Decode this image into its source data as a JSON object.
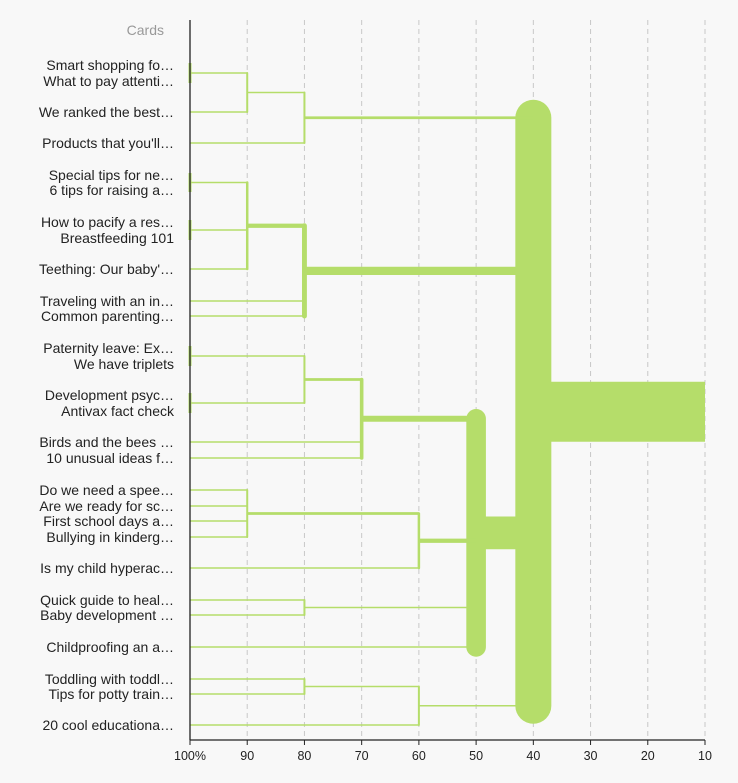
{
  "chart_data": {
    "type": "dendrogram",
    "header": "Cards",
    "accent_color": "#b5dd6a",
    "axis": {
      "ticks": [
        100,
        90,
        80,
        70,
        60,
        50,
        40,
        30,
        20,
        10
      ],
      "tick_labels": [
        "100%",
        "90",
        "80",
        "70",
        "60",
        "50",
        "40",
        "30",
        "20",
        "10"
      ]
    },
    "labels": [
      "Smart shopping fo…",
      "What to pay attenti…",
      "We ranked the best…",
      "Products that you'll…",
      "Special tips for ne…",
      "6 tips for raising a…",
      "How to pacify a res…",
      "Breastfeeding 101",
      "Teething: Our baby'…",
      "Traveling with an in…",
      "Common parenting…",
      "Paternity leave: Ex…",
      "We have triplets",
      "Development psyc…",
      "Antivax fact check",
      "Birds and the bees …",
      "10 unusual ideas f…",
      "Do we need a spee…",
      "Are we ready for sc…",
      "First school days a…",
      "Bullying in kinderg…",
      "Is my child hyperac…",
      "Quick guide to heal…",
      "Baby development …",
      "Childproofing an a…",
      "Toddling with toddl…",
      "Tips for potty train…",
      "20 cool educationa…"
    ],
    "merges": [
      {
        "members": [
          0,
          1
        ],
        "similarity": 100
      },
      {
        "members": [
          4,
          5
        ],
        "similarity": 100
      },
      {
        "members": [
          6,
          7
        ],
        "similarity": 100
      },
      {
        "members": [
          11,
          12
        ],
        "similarity": 100
      },
      {
        "members": [
          13,
          14
        ],
        "similarity": 100
      },
      {
        "members": [
          0,
          1,
          2
        ],
        "similarity": 90
      },
      {
        "members": [
          4,
          5,
          6,
          7,
          8
        ],
        "similarity": 90
      },
      {
        "members": [
          17,
          18,
          19,
          20
        ],
        "similarity": 90
      },
      {
        "members": [
          0,
          1,
          2,
          3
        ],
        "similarity": 80
      },
      {
        "members": [
          4,
          5,
          6,
          7,
          8,
          9,
          10
        ],
        "similarity": 80
      },
      {
        "members": [
          11,
          12,
          13,
          14
        ],
        "similarity": 80
      },
      {
        "members": [
          22,
          23
        ],
        "similarity": 80
      },
      {
        "members": [
          25,
          26
        ],
        "similarity": 80
      },
      {
        "members": [
          11,
          12,
          13,
          14,
          15,
          16
        ],
        "similarity": 70
      },
      {
        "members": [
          17,
          18,
          19,
          20,
          21
        ],
        "similarity": 60
      },
      {
        "members": [
          25,
          26,
          27
        ],
        "similarity": 60
      },
      {
        "members": [
          11,
          12,
          13,
          14,
          15,
          16,
          17,
          18,
          19,
          20,
          21,
          22,
          23,
          24
        ],
        "similarity": 50
      },
      {
        "members": [
          0,
          1,
          2,
          3,
          4,
          5,
          6,
          7,
          8,
          9,
          10,
          11,
          12,
          13,
          14,
          15,
          16,
          17,
          18,
          19,
          20,
          21,
          22,
          23,
          24,
          25,
          26,
          27
        ],
        "similarity": 40
      }
    ]
  }
}
